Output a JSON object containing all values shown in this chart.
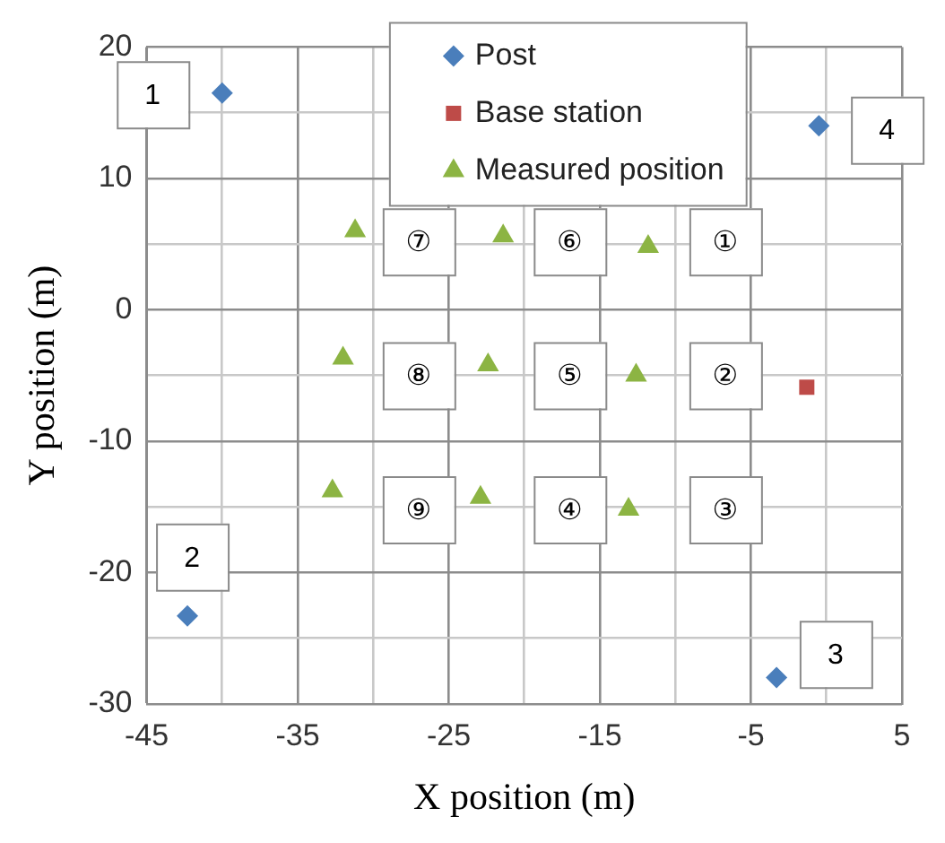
{
  "chart_data": {
    "type": "scatter",
    "xlabel": "X position (m)",
    "ylabel": "Y position (m)",
    "xlim": [
      -45,
      5
    ],
    "xticks": [
      -45,
      {
        "value": -40,
        "label": null
      },
      -35,
      {
        "value": -30,
        "label": null
      },
      -25,
      {
        "value": -20,
        "label": null
      },
      -15,
      {
        "value": -10,
        "label": null
      },
      -5,
      {
        "value": 0,
        "label": null
      },
      5
    ],
    "ylim": [
      -30,
      20
    ],
    "yticks": [
      -30,
      {
        "value": -25,
        "label": null
      },
      -20,
      {
        "value": -15,
        "label": null
      },
      -10,
      {
        "value": -5,
        "label": null
      },
      0,
      {
        "value": 5,
        "label": null
      },
      10,
      {
        "value": 15,
        "label": null
      },
      20
    ],
    "grid": true,
    "legend": "top",
    "series": [
      {
        "name": "Post",
        "color": "#4a7ebb",
        "marker": "diamond",
        "x": [
          -40,
          -42.3,
          -3.3,
          -0.5
        ],
        "values": [
          16.5,
          -23.3,
          -28,
          14
        ]
      },
      {
        "name": "Base station",
        "color": "#be4b48",
        "marker": "square",
        "x": [
          -1.3
        ],
        "values": [
          -5.9
        ]
      },
      {
        "name": "Measured position",
        "color": "#8cb443",
        "marker": "triangle",
        "x": [
          -11.8,
          -12.6,
          -13.1,
          -22.9,
          -22.4,
          -21.4,
          -31.2,
          -32,
          -32.7
        ],
        "values": [
          4.8,
          -5,
          -15.2,
          -14.3,
          -4.2,
          5.6,
          6,
          -3.7,
          -13.8
        ]
      }
    ],
    "annotations": [
      {
        "text": "1",
        "x": -44.6,
        "y": 16.4
      },
      {
        "text": "2",
        "x": -42,
        "y": -18.8
      },
      {
        "text": "3",
        "x": 0.6,
        "y": -26.2
      },
      {
        "text": "4",
        "x": 4,
        "y": 13.7
      },
      {
        "text": "①",
        "x": -6.7,
        "y": 5.2
      },
      {
        "text": "②",
        "x": -6.7,
        "y": -5
      },
      {
        "text": "③",
        "x": -6.7,
        "y": -15.2
      },
      {
        "text": "④",
        "x": -17,
        "y": -15.2
      },
      {
        "text": "⑤",
        "x": -17,
        "y": -5
      },
      {
        "text": "⑥",
        "x": -17,
        "y": 5.2
      },
      {
        "text": "⑦",
        "x": -27,
        "y": 5.2
      },
      {
        "text": "⑧",
        "x": -27,
        "y": -5
      },
      {
        "text": "⑨",
        "x": -27,
        "y": -15.2
      }
    ]
  }
}
